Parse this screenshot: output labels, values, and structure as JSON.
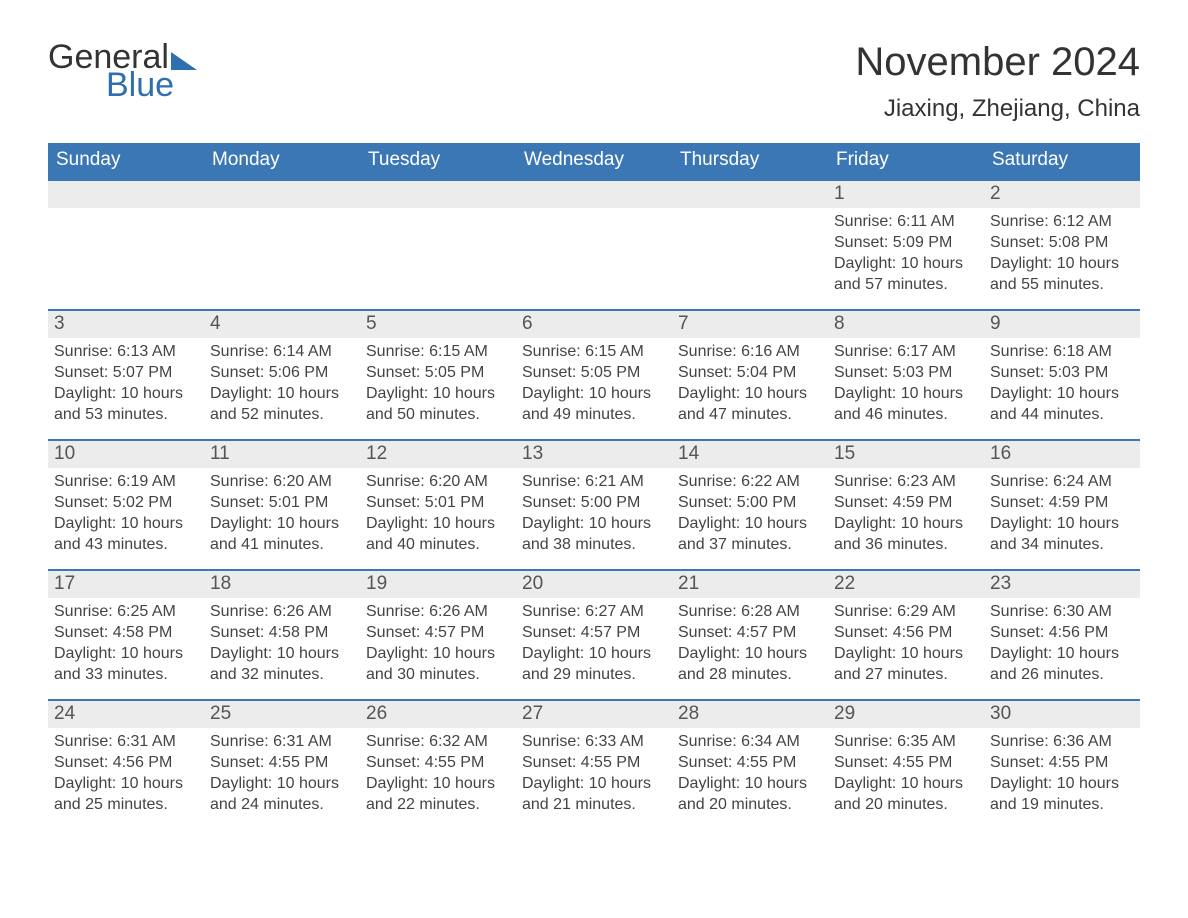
{
  "logo": {
    "word1": "General",
    "word2": "Blue",
    "tri_color": "#2f6fb0",
    "blue_color": "#2f6fb0"
  },
  "title": "November 2024",
  "location": "Jiaxing, Zhejiang, China",
  "colors": {
    "header_bg": "#3b77b5",
    "header_text": "#ffffff",
    "daynum_bg": "#ececec",
    "daynum_border": "#3b77b5",
    "body_text": "#444444",
    "title_text": "#333333"
  },
  "fonts": {
    "title_size": 40,
    "location_size": 24,
    "dow_size": 19,
    "daynum_size": 19,
    "body_size": 16
  },
  "days_of_week": [
    "Sunday",
    "Monday",
    "Tuesday",
    "Wednesday",
    "Thursday",
    "Friday",
    "Saturday"
  ],
  "weeks": [
    [
      {
        "day": "",
        "sunrise": "",
        "sunset": "",
        "daylight1": "",
        "daylight2": ""
      },
      {
        "day": "",
        "sunrise": "",
        "sunset": "",
        "daylight1": "",
        "daylight2": ""
      },
      {
        "day": "",
        "sunrise": "",
        "sunset": "",
        "daylight1": "",
        "daylight2": ""
      },
      {
        "day": "",
        "sunrise": "",
        "sunset": "",
        "daylight1": "",
        "daylight2": ""
      },
      {
        "day": "",
        "sunrise": "",
        "sunset": "",
        "daylight1": "",
        "daylight2": ""
      },
      {
        "day": "1",
        "sunrise": "Sunrise: 6:11 AM",
        "sunset": "Sunset: 5:09 PM",
        "daylight1": "Daylight: 10 hours",
        "daylight2": "and 57 minutes."
      },
      {
        "day": "2",
        "sunrise": "Sunrise: 6:12 AM",
        "sunset": "Sunset: 5:08 PM",
        "daylight1": "Daylight: 10 hours",
        "daylight2": "and 55 minutes."
      }
    ],
    [
      {
        "day": "3",
        "sunrise": "Sunrise: 6:13 AM",
        "sunset": "Sunset: 5:07 PM",
        "daylight1": "Daylight: 10 hours",
        "daylight2": "and 53 minutes."
      },
      {
        "day": "4",
        "sunrise": "Sunrise: 6:14 AM",
        "sunset": "Sunset: 5:06 PM",
        "daylight1": "Daylight: 10 hours",
        "daylight2": "and 52 minutes."
      },
      {
        "day": "5",
        "sunrise": "Sunrise: 6:15 AM",
        "sunset": "Sunset: 5:05 PM",
        "daylight1": "Daylight: 10 hours",
        "daylight2": "and 50 minutes."
      },
      {
        "day": "6",
        "sunrise": "Sunrise: 6:15 AM",
        "sunset": "Sunset: 5:05 PM",
        "daylight1": "Daylight: 10 hours",
        "daylight2": "and 49 minutes."
      },
      {
        "day": "7",
        "sunrise": "Sunrise: 6:16 AM",
        "sunset": "Sunset: 5:04 PM",
        "daylight1": "Daylight: 10 hours",
        "daylight2": "and 47 minutes."
      },
      {
        "day": "8",
        "sunrise": "Sunrise: 6:17 AM",
        "sunset": "Sunset: 5:03 PM",
        "daylight1": "Daylight: 10 hours",
        "daylight2": "and 46 minutes."
      },
      {
        "day": "9",
        "sunrise": "Sunrise: 6:18 AM",
        "sunset": "Sunset: 5:03 PM",
        "daylight1": "Daylight: 10 hours",
        "daylight2": "and 44 minutes."
      }
    ],
    [
      {
        "day": "10",
        "sunrise": "Sunrise: 6:19 AM",
        "sunset": "Sunset: 5:02 PM",
        "daylight1": "Daylight: 10 hours",
        "daylight2": "and 43 minutes."
      },
      {
        "day": "11",
        "sunrise": "Sunrise: 6:20 AM",
        "sunset": "Sunset: 5:01 PM",
        "daylight1": "Daylight: 10 hours",
        "daylight2": "and 41 minutes."
      },
      {
        "day": "12",
        "sunrise": "Sunrise: 6:20 AM",
        "sunset": "Sunset: 5:01 PM",
        "daylight1": "Daylight: 10 hours",
        "daylight2": "and 40 minutes."
      },
      {
        "day": "13",
        "sunrise": "Sunrise: 6:21 AM",
        "sunset": "Sunset: 5:00 PM",
        "daylight1": "Daylight: 10 hours",
        "daylight2": "and 38 minutes."
      },
      {
        "day": "14",
        "sunrise": "Sunrise: 6:22 AM",
        "sunset": "Sunset: 5:00 PM",
        "daylight1": "Daylight: 10 hours",
        "daylight2": "and 37 minutes."
      },
      {
        "day": "15",
        "sunrise": "Sunrise: 6:23 AM",
        "sunset": "Sunset: 4:59 PM",
        "daylight1": "Daylight: 10 hours",
        "daylight2": "and 36 minutes."
      },
      {
        "day": "16",
        "sunrise": "Sunrise: 6:24 AM",
        "sunset": "Sunset: 4:59 PM",
        "daylight1": "Daylight: 10 hours",
        "daylight2": "and 34 minutes."
      }
    ],
    [
      {
        "day": "17",
        "sunrise": "Sunrise: 6:25 AM",
        "sunset": "Sunset: 4:58 PM",
        "daylight1": "Daylight: 10 hours",
        "daylight2": "and 33 minutes."
      },
      {
        "day": "18",
        "sunrise": "Sunrise: 6:26 AM",
        "sunset": "Sunset: 4:58 PM",
        "daylight1": "Daylight: 10 hours",
        "daylight2": "and 32 minutes."
      },
      {
        "day": "19",
        "sunrise": "Sunrise: 6:26 AM",
        "sunset": "Sunset: 4:57 PM",
        "daylight1": "Daylight: 10 hours",
        "daylight2": "and 30 minutes."
      },
      {
        "day": "20",
        "sunrise": "Sunrise: 6:27 AM",
        "sunset": "Sunset: 4:57 PM",
        "daylight1": "Daylight: 10 hours",
        "daylight2": "and 29 minutes."
      },
      {
        "day": "21",
        "sunrise": "Sunrise: 6:28 AM",
        "sunset": "Sunset: 4:57 PM",
        "daylight1": "Daylight: 10 hours",
        "daylight2": "and 28 minutes."
      },
      {
        "day": "22",
        "sunrise": "Sunrise: 6:29 AM",
        "sunset": "Sunset: 4:56 PM",
        "daylight1": "Daylight: 10 hours",
        "daylight2": "and 27 minutes."
      },
      {
        "day": "23",
        "sunrise": "Sunrise: 6:30 AM",
        "sunset": "Sunset: 4:56 PM",
        "daylight1": "Daylight: 10 hours",
        "daylight2": "and 26 minutes."
      }
    ],
    [
      {
        "day": "24",
        "sunrise": "Sunrise: 6:31 AM",
        "sunset": "Sunset: 4:56 PM",
        "daylight1": "Daylight: 10 hours",
        "daylight2": "and 25 minutes."
      },
      {
        "day": "25",
        "sunrise": "Sunrise: 6:31 AM",
        "sunset": "Sunset: 4:55 PM",
        "daylight1": "Daylight: 10 hours",
        "daylight2": "and 24 minutes."
      },
      {
        "day": "26",
        "sunrise": "Sunrise: 6:32 AM",
        "sunset": "Sunset: 4:55 PM",
        "daylight1": "Daylight: 10 hours",
        "daylight2": "and 22 minutes."
      },
      {
        "day": "27",
        "sunrise": "Sunrise: 6:33 AM",
        "sunset": "Sunset: 4:55 PM",
        "daylight1": "Daylight: 10 hours",
        "daylight2": "and 21 minutes."
      },
      {
        "day": "28",
        "sunrise": "Sunrise: 6:34 AM",
        "sunset": "Sunset: 4:55 PM",
        "daylight1": "Daylight: 10 hours",
        "daylight2": "and 20 minutes."
      },
      {
        "day": "29",
        "sunrise": "Sunrise: 6:35 AM",
        "sunset": "Sunset: 4:55 PM",
        "daylight1": "Daylight: 10 hours",
        "daylight2": "and 20 minutes."
      },
      {
        "day": "30",
        "sunrise": "Sunrise: 6:36 AM",
        "sunset": "Sunset: 4:55 PM",
        "daylight1": "Daylight: 10 hours",
        "daylight2": "and 19 minutes."
      }
    ]
  ]
}
